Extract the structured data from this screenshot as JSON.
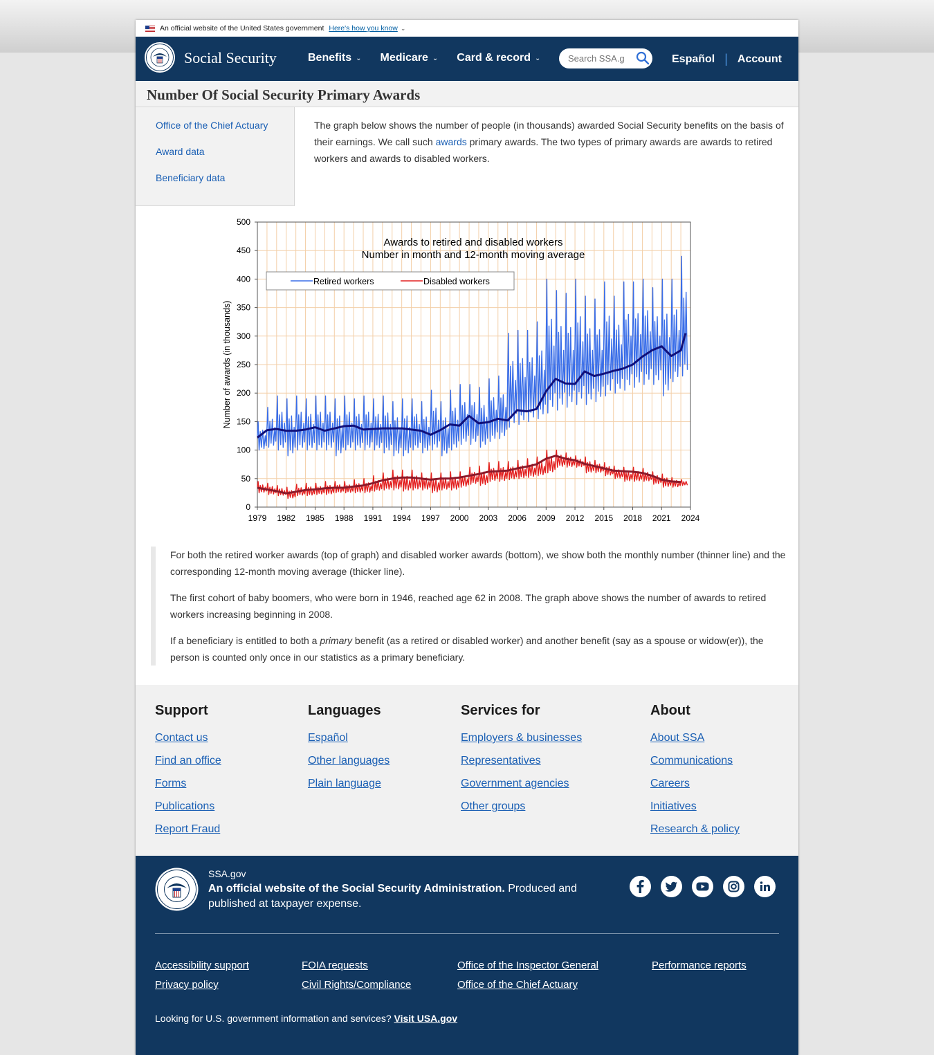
{
  "gov_banner": {
    "text": "An official website of the United States government",
    "link": "Here's how you know"
  },
  "header": {
    "site_title": "Social Security",
    "nav": [
      {
        "label": "Benefits"
      },
      {
        "label": "Medicare"
      },
      {
        "label": "Card & record"
      }
    ],
    "search_placeholder": "Search SSA.gov",
    "espanol": "Español",
    "account": "Account"
  },
  "page_title": "Number Of Social Security Primary Awards",
  "sidebar": {
    "items": [
      {
        "label": "Office of the Chief Actuary"
      },
      {
        "label": "Award data"
      },
      {
        "label": "Beneficiary data"
      }
    ]
  },
  "intro": {
    "part1": "The graph below shows the number of people (in thousands) awarded Social Security benefits on the basis of their earnings. We call such ",
    "link": "awards",
    "part2": " primary awards. The two types of primary awards are awards to retired workers and awards to disabled workers."
  },
  "chart_data": {
    "type": "line",
    "title": "Awards to retired and disabled workers",
    "subtitle": "Number in month and 12-month moving average",
    "ylabel": "Number of awards (in thousands)",
    "ylim": [
      0,
      500
    ],
    "xlim": [
      1979,
      2024
    ],
    "yticks": [
      "0",
      "50",
      "100",
      "150",
      "200",
      "250",
      "300",
      "350",
      "400",
      "450",
      "500"
    ],
    "xticks": [
      "1979",
      "1982",
      "1985",
      "1988",
      "1991",
      "1994",
      "1997",
      "2000",
      "2003",
      "2006",
      "2009",
      "2012",
      "2015",
      "2018",
      "2021",
      "2024"
    ],
    "legend": [
      "Retired workers",
      "Disabled workers"
    ],
    "legend_position": "top-left",
    "grid": true,
    "series": [
      {
        "name": "Retired workers",
        "style": "monthly",
        "color": "#3a6ee8",
        "x": [
          1979.0,
          1980.0,
          1981.0,
          1982.0,
          1983.0,
          1984.0,
          1985.0,
          1986.0,
          1987.0,
          1988.0,
          1989.0,
          1990.0,
          1991.0,
          1992.0,
          1993.0,
          1994.0,
          1995.0,
          1996.0,
          1997.0,
          1998.0,
          1999.0,
          2000.0,
          2001.0,
          2002.0,
          2003.0,
          2004.0,
          2005.0,
          2006.0,
          2007.0,
          2008.0,
          2009.0,
          2010.0,
          2011.0,
          2012.0,
          2013.0,
          2014.0,
          2015.0,
          2016.0,
          2017.0,
          2018.0,
          2019.0,
          2020.0,
          2021.0,
          2022.0,
          2023.0
        ],
        "peak": [
          150,
          175,
          195,
          190,
          195,
          190,
          195,
          195,
          190,
          195,
          190,
          195,
          190,
          195,
          185,
          190,
          190,
          185,
          205,
          185,
          205,
          215,
          215,
          210,
          225,
          230,
          305,
          310,
          310,
          325,
          400,
          380,
          375,
          400,
          370,
          365,
          395,
          370,
          395,
          395,
          400,
          385,
          400,
          400,
          440
        ],
        "low": [
          100,
          105,
          100,
          90,
          100,
          100,
          100,
          100,
          90,
          100,
          100,
          100,
          100,
          95,
          90,
          90,
          100,
          95,
          100,
          90,
          100,
          110,
          110,
          105,
          115,
          120,
          140,
          145,
          150,
          155,
          165,
          170,
          175,
          180,
          180,
          185,
          195,
          200,
          205,
          210,
          215,
          215,
          195,
          220,
          230
        ]
      },
      {
        "name": "Retired workers",
        "style": "moving-average",
        "color": "#10107a",
        "x": [
          1979.0,
          1980.0,
          1981.0,
          1982.0,
          1983.0,
          1984.0,
          1985.0,
          1986.0,
          1987.0,
          1988.0,
          1989.0,
          1990.0,
          1991.0,
          1992.0,
          1993.0,
          1994.0,
          1995.0,
          1996.0,
          1997.0,
          1998.0,
          1999.0,
          2000.0,
          2001.0,
          2002.0,
          2003.0,
          2004.0,
          2005.0,
          2006.0,
          2007.0,
          2008.0,
          2009.0,
          2010.0,
          2011.0,
          2012.0,
          2013.0,
          2014.0,
          2015.0,
          2016.0,
          2017.0,
          2018.0,
          2019.0,
          2020.0,
          2021.0,
          2022.0,
          2023.0,
          2023.5
        ],
        "y": [
          122,
          135,
          137,
          134,
          134,
          136,
          140,
          134,
          138,
          142,
          143,
          136,
          137,
          138,
          138,
          138,
          136,
          134,
          127,
          135,
          145,
          143,
          160,
          147,
          149,
          155,
          152,
          170,
          168,
          172,
          203,
          225,
          217,
          216,
          238,
          230,
          234,
          239,
          243,
          250,
          264,
          275,
          282,
          265,
          275,
          305
        ]
      },
      {
        "name": "Disabled workers",
        "style": "monthly",
        "color": "#e32020",
        "x": [
          1979.0,
          1980.0,
          1981.0,
          1982.0,
          1983.0,
          1984.0,
          1985.0,
          1986.0,
          1987.0,
          1988.0,
          1989.0,
          1990.0,
          1991.0,
          1992.0,
          1993.0,
          1994.0,
          1995.0,
          1996.0,
          1997.0,
          1998.0,
          1999.0,
          2000.0,
          2001.0,
          2002.0,
          2003.0,
          2004.0,
          2005.0,
          2006.0,
          2007.0,
          2008.0,
          2009.0,
          2010.0,
          2011.0,
          2012.0,
          2013.0,
          2014.0,
          2015.0,
          2016.0,
          2017.0,
          2018.0,
          2019.0,
          2020.0,
          2021.0,
          2022.0,
          2023.0
        ],
        "peak": [
          45,
          42,
          38,
          35,
          40,
          42,
          42,
          45,
          45,
          45,
          48,
          50,
          55,
          60,
          65,
          65,
          65,
          60,
          60,
          60,
          62,
          62,
          70,
          72,
          78,
          80,
          80,
          82,
          85,
          88,
          100,
          100,
          95,
          90,
          88,
          82,
          78,
          72,
          70,
          70,
          68,
          62,
          58,
          52,
          48
        ],
        "low": [
          25,
          22,
          20,
          15,
          20,
          20,
          22,
          22,
          25,
          25,
          25,
          25,
          28,
          30,
          30,
          28,
          30,
          30,
          25,
          30,
          30,
          35,
          40,
          38,
          45,
          45,
          48,
          50,
          52,
          55,
          60,
          70,
          70,
          70,
          60,
          60,
          55,
          50,
          45,
          45,
          45,
          40,
          35,
          35,
          38
        ]
      },
      {
        "name": "Disabled workers",
        "style": "moving-average",
        "color": "#8b1a2a",
        "x": [
          1979.0,
          1980.0,
          1981.0,
          1982.0,
          1983.0,
          1984.0,
          1985.0,
          1986.0,
          1987.0,
          1988.0,
          1989.0,
          1990.0,
          1991.0,
          1992.0,
          1993.0,
          1994.0,
          1995.0,
          1996.0,
          1997.0,
          1998.0,
          1999.0,
          2000.0,
          2001.0,
          2002.0,
          2003.0,
          2004.0,
          2005.0,
          2006.0,
          2007.0,
          2008.0,
          2009.0,
          2010.0,
          2011.0,
          2012.0,
          2013.0,
          2014.0,
          2015.0,
          2016.0,
          2017.0,
          2018.0,
          2019.0,
          2020.0,
          2021.0,
          2022.0,
          2023.0
        ],
        "y": [
          34,
          31,
          28,
          24,
          27,
          30,
          31,
          33,
          34,
          34,
          36,
          38,
          42,
          47,
          50,
          52,
          52,
          50,
          48,
          50,
          50,
          52,
          55,
          58,
          62,
          63,
          64,
          68,
          71,
          75,
          85,
          90,
          85,
          82,
          76,
          72,
          68,
          64,
          63,
          62,
          60,
          55,
          48,
          45,
          44
        ]
      }
    ]
  },
  "notes": [
    "For both the retired worker awards (top of graph) and disabled worker awards (bottom), we show both the monthly number (thinner line) and the corresponding 12-month moving average (thicker line).",
    "The first cohort of baby boomers, who were born in 1946, reached age 62 in 2008. The graph above shows the number of awards to retired workers increasing beginning in 2008."
  ],
  "note3": {
    "part1": "If a beneficiary is entitled to both a ",
    "em": "primary",
    "part2": " benefit (as a retired or disabled worker) and another benefit (say as a spouse or widow(er)), the person is counted only once in our statistics as a primary beneficiary."
  },
  "footer": {
    "support": {
      "title": "Support",
      "links": [
        "Contact us",
        "Find an office",
        "Forms",
        "Publications",
        "Report Fraud"
      ]
    },
    "languages": {
      "title": "Languages",
      "links": [
        "Español",
        "Other languages",
        "Plain language"
      ]
    },
    "services": {
      "title": "Services for",
      "links": [
        "Employers & businesses",
        "Representatives",
        "Government agencies",
        "Other groups"
      ]
    },
    "about": {
      "title": "About",
      "links": [
        "About SSA",
        "Communications",
        "Careers",
        "Initiatives",
        "Research & policy"
      ]
    },
    "ssa_gov": "SSA.gov",
    "official_bold": "An official website of the Social Security Administration.",
    "official_rest": " Produced and published at taxpayer expense.",
    "bottom_links": [
      "Accessibility support",
      "Privacy policy",
      "FOIA requests",
      "Civil Rights/Compliance",
      "Office of the Inspector General",
      "Office of the Chief Actuary",
      "Performance reports"
    ],
    "usa_text": "Looking for U.S. government information and services? ",
    "usa_link": "Visit USA.gov"
  }
}
